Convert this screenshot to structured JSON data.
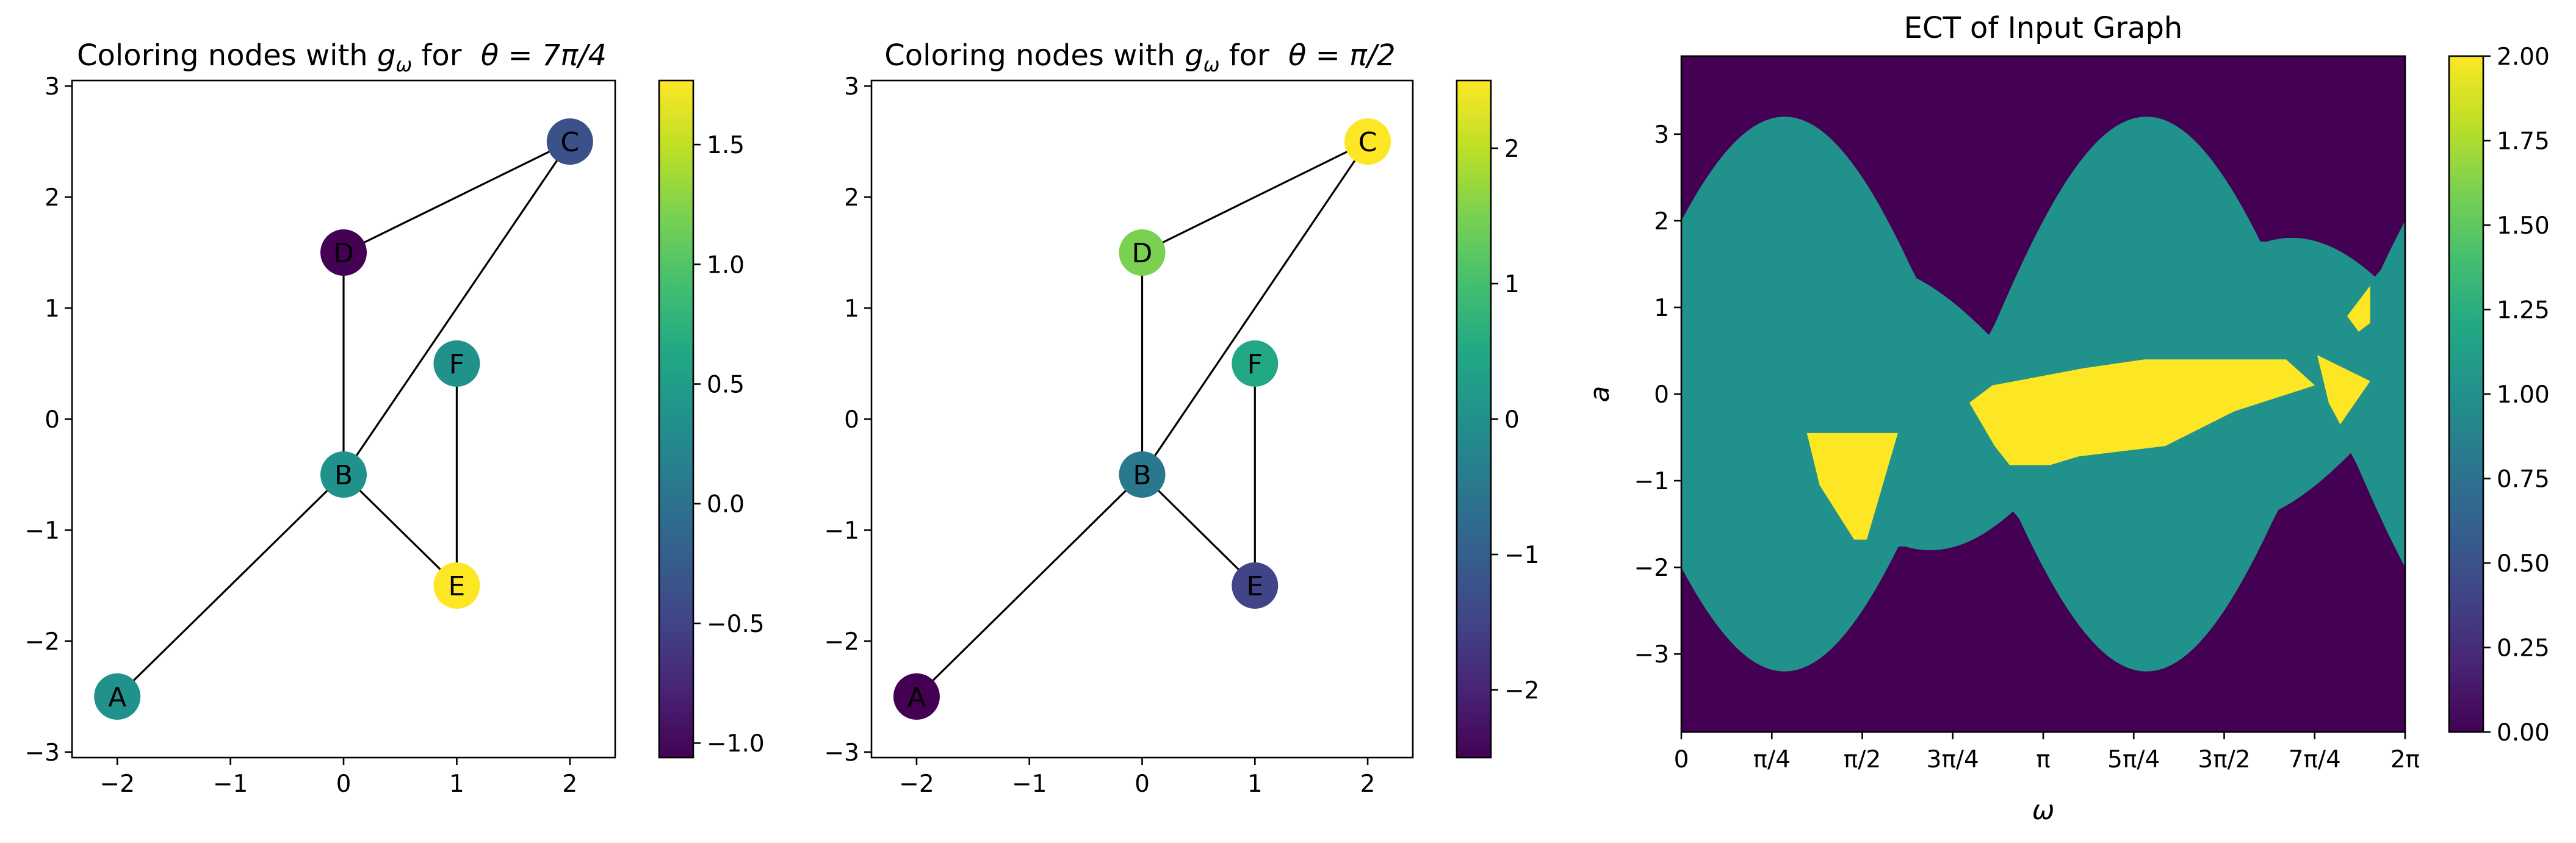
{
  "chart_data": [
    {
      "type": "graph",
      "title": "Coloring nodes with g_ω for θ = 7π/4",
      "title_prefix": "Coloring nodes with ",
      "title_fn": "g",
      "title_sub": "ω",
      "title_mid": " for ",
      "title_theta": "θ = 7π/4",
      "xlim": [
        -2.4,
        2.4
      ],
      "ylim": [
        -3.05,
        3.05
      ],
      "xticks": [
        -2,
        -1,
        0,
        1,
        2
      ],
      "yticks": [
        -3,
        -2,
        -1,
        0,
        1,
        2,
        3
      ],
      "nodes": [
        {
          "label": "A",
          "x": -2,
          "y": -2.5,
          "value": 0.3536
        },
        {
          "label": "B",
          "x": 0,
          "y": -0.5,
          "value": 0.3536
        },
        {
          "label": "C",
          "x": 2,
          "y": 2.5,
          "value": -0.3536
        },
        {
          "label": "D",
          "x": 0,
          "y": 1.5,
          "value": -1.0607
        },
        {
          "label": "E",
          "x": 1,
          "y": -1.5,
          "value": 1.7678
        },
        {
          "label": "F",
          "x": 1,
          "y": 0.5,
          "value": 0.3536
        }
      ],
      "edges": [
        [
          "A",
          "B"
        ],
        [
          "B",
          "C"
        ],
        [
          "B",
          "D"
        ],
        [
          "B",
          "E"
        ],
        [
          "C",
          "D"
        ],
        [
          "E",
          "F"
        ]
      ],
      "colorbar": {
        "min": -1.0607,
        "max": 1.7678,
        "ticks": [
          -1.0,
          -0.5,
          0.0,
          0.5,
          1.0,
          1.5
        ],
        "tick_labels": [
          "−1.0",
          "−0.5",
          "0.0",
          "0.5",
          "1.0",
          "1.5"
        ]
      }
    },
    {
      "type": "graph",
      "title": "Coloring nodes with g_ω for θ = π/2",
      "title_prefix": "Coloring nodes with ",
      "title_fn": "g",
      "title_sub": "ω",
      "title_mid": " for ",
      "title_theta": "θ = π/2",
      "xlim": [
        -2.4,
        2.4
      ],
      "ylim": [
        -3.05,
        3.05
      ],
      "xticks": [
        -2,
        -1,
        0,
        1,
        2
      ],
      "yticks": [
        -3,
        -2,
        -1,
        0,
        1,
        2,
        3
      ],
      "nodes": [
        {
          "label": "A",
          "x": -2,
          "y": -2.5,
          "value": -2.5
        },
        {
          "label": "B",
          "x": 0,
          "y": -0.5,
          "value": -0.5
        },
        {
          "label": "C",
          "x": 2,
          "y": 2.5,
          "value": 2.5
        },
        {
          "label": "D",
          "x": 0,
          "y": 1.5,
          "value": 1.5
        },
        {
          "label": "E",
          "x": 1,
          "y": -1.5,
          "value": -1.5
        },
        {
          "label": "F",
          "x": 1,
          "y": 0.5,
          "value": 0.5
        }
      ],
      "edges": [
        [
          "A",
          "B"
        ],
        [
          "B",
          "C"
        ],
        [
          "B",
          "D"
        ],
        [
          "B",
          "E"
        ],
        [
          "C",
          "D"
        ],
        [
          "E",
          "F"
        ]
      ],
      "colorbar": {
        "min": -2.5,
        "max": 2.5,
        "ticks": [
          -2,
          -1,
          0,
          1,
          2
        ],
        "tick_labels": [
          "−2",
          "−1",
          "0",
          "1",
          "2"
        ]
      }
    },
    {
      "type": "heatmap",
      "title": "ECT of Input Graph",
      "xlabel": "ω",
      "ylabel": "a",
      "xlim": [
        0,
        6.2832
      ],
      "ylim": [
        -3.9,
        3.9
      ],
      "xtick_labels": [
        "0",
        "π/4",
        "π/2",
        "3π/4",
        "π",
        "5π/4",
        "3π/2",
        "7π/4",
        "2π"
      ],
      "yticks": [
        -3,
        -2,
        -1,
        0,
        1,
        2,
        3
      ],
      "value_levels": [
        0,
        1,
        2
      ],
      "regions": [
        {
          "value": 1,
          "description": "band between upper and lower envelopes"
        },
        {
          "value": 2,
          "description": "triangle near π/2 and band near π–7π/4"
        }
      ],
      "colorbar": {
        "min": 0,
        "max": 2,
        "ticks": [
          0,
          0.25,
          0.5,
          0.75,
          1.0,
          1.25,
          1.5,
          1.75,
          2.0
        ],
        "tick_labels": [
          "0.00",
          "0.25",
          "0.50",
          "0.75",
          "1.00",
          "1.25",
          "1.50",
          "1.75",
          "2.00"
        ]
      }
    }
  ],
  "colors": {
    "viridis_low": "#440154",
    "viridis_mid": "#21918c",
    "viridis_high": "#fde725"
  }
}
